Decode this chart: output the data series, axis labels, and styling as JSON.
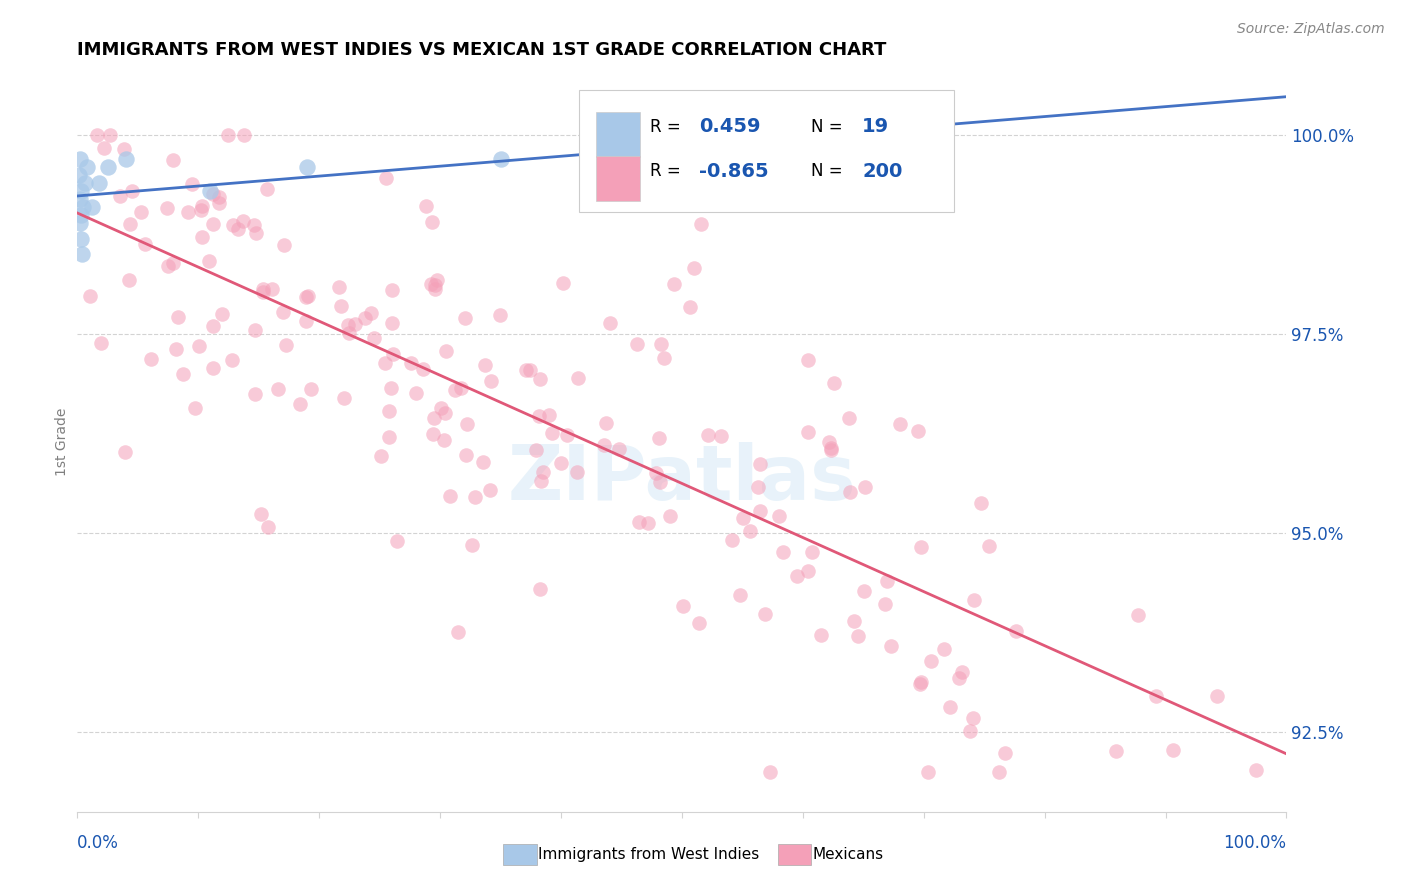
{
  "title": "IMMIGRANTS FROM WEST INDIES VS MEXICAN 1ST GRADE CORRELATION CHART",
  "source": "Source: ZipAtlas.com",
  "ylabel": "1st Grade",
  "legend_labels": [
    "Immigrants from West Indies",
    "Mexicans"
  ],
  "r_west_indies": 0.459,
  "n_west_indies": 19,
  "r_mexicans": -0.865,
  "n_mexicans": 200,
  "blue_color": "#a8c8e8",
  "pink_color": "#f4a0b8",
  "blue_line_color": "#4472c4",
  "pink_line_color": "#e05878",
  "legend_r_color": "#1a56b0",
  "watermark": "ZIPatlas",
  "xlim": [
    0.0,
    1.0
  ],
  "ylim": [
    91.5,
    100.8
  ],
  "ytick_vals": [
    92.5,
    95.0,
    97.5,
    100.0
  ],
  "title_fontsize": 13,
  "source_fontsize": 10,
  "tick_fontsize": 12
}
